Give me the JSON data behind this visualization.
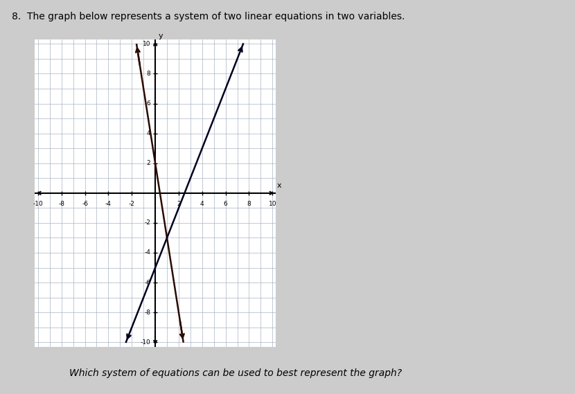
{
  "title": "8.  The graph below represents a system of two linear equations in two variables.",
  "question": "Which system of equations can be used to best represent the graph?",
  "line1": {
    "slope": -5,
    "intercept": 2,
    "color": "#2a0a00",
    "linewidth": 1.8
  },
  "line2": {
    "slope": 2,
    "intercept": -5,
    "color": "#000020",
    "linewidth": 1.8
  },
  "xlim": [
    -10,
    10
  ],
  "ylim": [
    -10,
    10
  ],
  "xticks": [
    -10,
    -8,
    -6,
    -4,
    -2,
    2,
    4,
    6,
    8,
    10
  ],
  "yticks": [
    -10,
    -8,
    -6,
    -4,
    -2,
    2,
    4,
    6,
    8,
    10
  ],
  "grid_color": "#aab4c4",
  "grid_linewidth": 0.5,
  "axis_color": "#000000",
  "bg_color": "#ffffff",
  "fig_bg_color": "#cccccc"
}
